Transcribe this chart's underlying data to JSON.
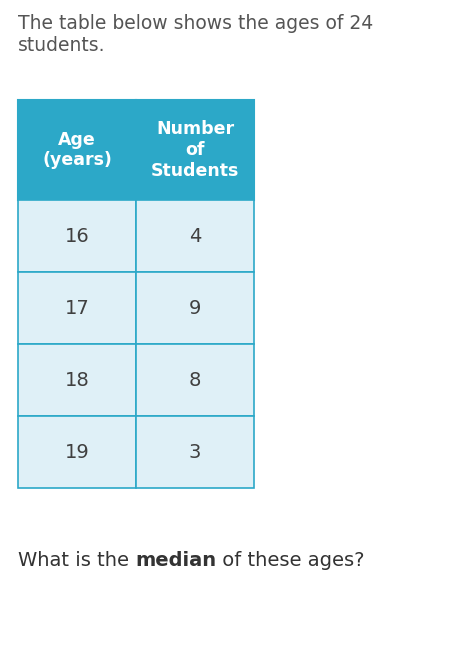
{
  "title_text": "The table below shows the ages of 24\nstudents.",
  "question_text_normal": "What is the ",
  "question_text_bold": "median",
  "question_text_end": " of these ages?",
  "col_headers": [
    "Age\n(years)",
    "Number\nof\nStudents"
  ],
  "rows": [
    [
      "16",
      "4"
    ],
    [
      "17",
      "9"
    ],
    [
      "18",
      "8"
    ],
    [
      "19",
      "3"
    ]
  ],
  "header_bg_color": "#2ca8c8",
  "header_text_color": "#ffffff",
  "row_bg_color": "#dff0f7",
  "row_text_color": "#404040",
  "border_color": "#2ca8c8",
  "bg_color": "#ffffff",
  "title_color": "#555555",
  "question_color": "#333333",
  "title_fontsize": 13.5,
  "header_fontsize": 12.5,
  "cell_fontsize": 14,
  "question_fontsize": 14,
  "fig_width": 4.74,
  "fig_height": 6.65,
  "dpi": 100
}
